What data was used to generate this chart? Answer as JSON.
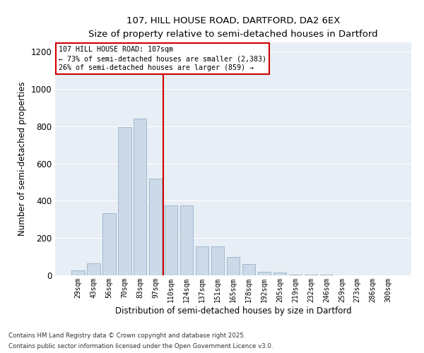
{
  "title_line1": "107, HILL HOUSE ROAD, DARTFORD, DA2 6EX",
  "title_line2": "Size of property relative to semi-detached houses in Dartford",
  "xlabel": "Distribution of semi-detached houses by size in Dartford",
  "ylabel": "Number of semi-detached properties",
  "bar_labels": [
    "29sqm",
    "43sqm",
    "56sqm",
    "70sqm",
    "83sqm",
    "97sqm",
    "110sqm",
    "124sqm",
    "137sqm",
    "151sqm",
    "165sqm",
    "178sqm",
    "192sqm",
    "205sqm",
    "219sqm",
    "232sqm",
    "246sqm",
    "259sqm",
    "273sqm",
    "286sqm",
    "300sqm"
  ],
  "bar_values": [
    25,
    65,
    335,
    795,
    840,
    520,
    375,
    375,
    155,
    155,
    100,
    60,
    20,
    15,
    5,
    5,
    2,
    1,
    0,
    0,
    0
  ],
  "bar_color": "#ccd9e8",
  "bar_edgecolor": "#a0b8cc",
  "property_line_color": "#cc0000",
  "annotation_title": "107 HILL HOUSE ROAD: 107sqm",
  "annotation_line2": "← 73% of semi-detached houses are smaller (2,383)",
  "annotation_line3": "26% of semi-detached houses are larger (859) →",
  "annotation_box_color": "#ffffff",
  "annotation_box_edgecolor": "#cc0000",
  "ylim": [
    0,
    1250
  ],
  "yticks": [
    0,
    200,
    400,
    600,
    800,
    1000,
    1200
  ],
  "background_color": "#e8eef5",
  "grid_color": "#ffffff",
  "footer_line1": "Contains HM Land Registry data © Crown copyright and database right 2025.",
  "footer_line2": "Contains public sector information licensed under the Open Government Licence v3.0."
}
